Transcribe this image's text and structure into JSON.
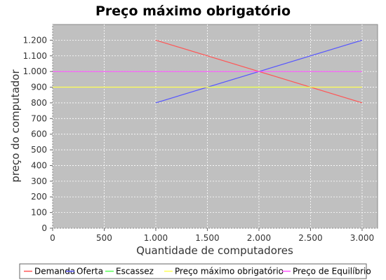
{
  "chart_data": {
    "type": "line",
    "title": "Preço máximo obrigatório",
    "xlabel": "Quantidade de computadores",
    "ylabel": "preço do computador",
    "xlim": [
      0,
      3150
    ],
    "ylim": [
      0,
      1300
    ],
    "x_ticks": [
      0,
      500,
      1000,
      1500,
      2000,
      2500,
      3000
    ],
    "x_tick_labels": [
      "0",
      "500",
      "1.000",
      "1.500",
      "2.000",
      "2.500",
      "3.000"
    ],
    "y_ticks": [
      0,
      100,
      200,
      300,
      400,
      500,
      600,
      700,
      800,
      900,
      1000,
      1100,
      1200
    ],
    "y_tick_labels": [
      "0",
      "100",
      "200",
      "300",
      "400",
      "500",
      "600",
      "700",
      "800",
      "900",
      "1.000",
      "1.100",
      "1.200"
    ],
    "grid": true,
    "plot_background": "#c0c0c0",
    "legend_position": "bottom",
    "series": [
      {
        "name": "Demanda",
        "color": "#ff5555",
        "x": [
          1000,
          3000
        ],
        "y": [
          1200,
          800
        ]
      },
      {
        "name": "Oferta",
        "color": "#5555ff",
        "x": [
          1000,
          3000
        ],
        "y": [
          800,
          1200
        ]
      },
      {
        "name": "Escassez",
        "color": "#55ff55",
        "x": [
          1500,
          2500
        ],
        "y": [
          900,
          900
        ]
      },
      {
        "name": "Preço máximo obrigatório",
        "color": "#ffff55",
        "x": [
          0,
          3000
        ],
        "y": [
          900,
          900
        ]
      },
      {
        "name": "Preço de Equilíbrio",
        "color": "#ff55ff",
        "x": [
          0,
          3000
        ],
        "y": [
          1000,
          1000
        ]
      }
    ]
  }
}
